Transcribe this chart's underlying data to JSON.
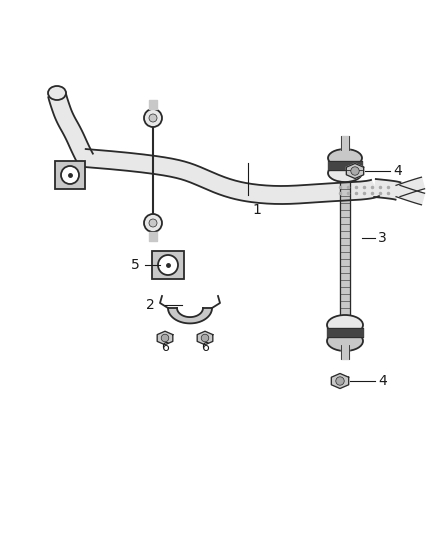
{
  "background_color": "#ffffff",
  "edge_color": "#2a2a2a",
  "fill_light": "#e8e8e8",
  "fill_mid": "#c8c8c8",
  "fill_dark": "#909090",
  "figsize": [
    4.38,
    5.33
  ],
  "dpi": 100,
  "label_color": "#1a1a1a",
  "label_fs": 10
}
